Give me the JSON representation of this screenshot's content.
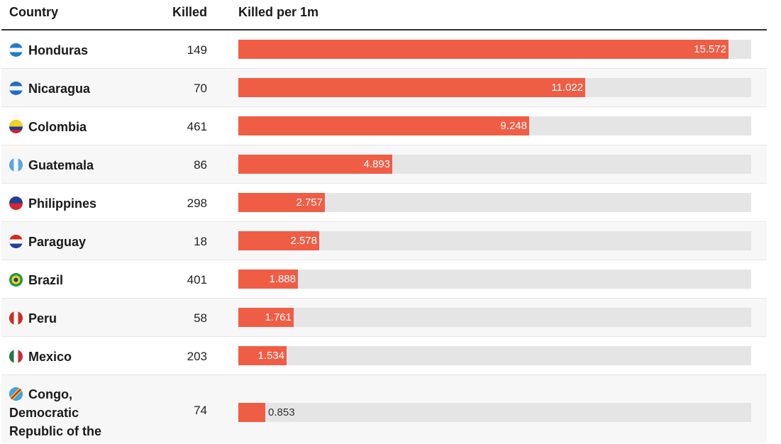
{
  "table": {
    "headers": {
      "country": "Country",
      "killed": "Killed",
      "killed_per_1m": "Killed per 1m"
    }
  },
  "chart_data": {
    "type": "bar",
    "orientation": "horizontal",
    "title": "",
    "xlabel": "Killed per 1m",
    "xlim": [
      0,
      16.3
    ],
    "bar_color": "#f05d45",
    "track_color": "#e5e5e5",
    "rows": [
      {
        "country": "Honduras",
        "killed": "149",
        "per_1m": 15.572,
        "label": "15.572",
        "flag_icon": "honduras-flag-icon"
      },
      {
        "country": "Nicaragua",
        "killed": "70",
        "per_1m": 11.022,
        "label": "11.022",
        "flag_icon": "nicaragua-flag-icon"
      },
      {
        "country": "Colombia",
        "killed": "461",
        "per_1m": 9.248,
        "label": "9.248",
        "flag_icon": "colombia-flag-icon"
      },
      {
        "country": "Guatemala",
        "killed": "86",
        "per_1m": 4.893,
        "label": "4.893",
        "flag_icon": "guatemala-flag-icon"
      },
      {
        "country": "Philippines",
        "killed": "298",
        "per_1m": 2.757,
        "label": "2.757",
        "flag_icon": "philippines-flag-icon"
      },
      {
        "country": "Paraguay",
        "killed": "18",
        "per_1m": 2.578,
        "label": "2.578",
        "flag_icon": "paraguay-flag-icon"
      },
      {
        "country": "Brazil",
        "killed": "401",
        "per_1m": 1.888,
        "label": "1.888",
        "flag_icon": "brazil-flag-icon"
      },
      {
        "country": "Peru",
        "killed": "58",
        "per_1m": 1.761,
        "label": "1.761",
        "flag_icon": "peru-flag-icon"
      },
      {
        "country": "Mexico",
        "killed": "203",
        "per_1m": 1.534,
        "label": "1.534",
        "flag_icon": "mexico-flag-icon"
      },
      {
        "country": "Congo, Democratic Republic of the",
        "killed": "74",
        "per_1m": 0.853,
        "label": "0.853",
        "flag_icon": "dr-congo-flag-icon"
      }
    ]
  }
}
